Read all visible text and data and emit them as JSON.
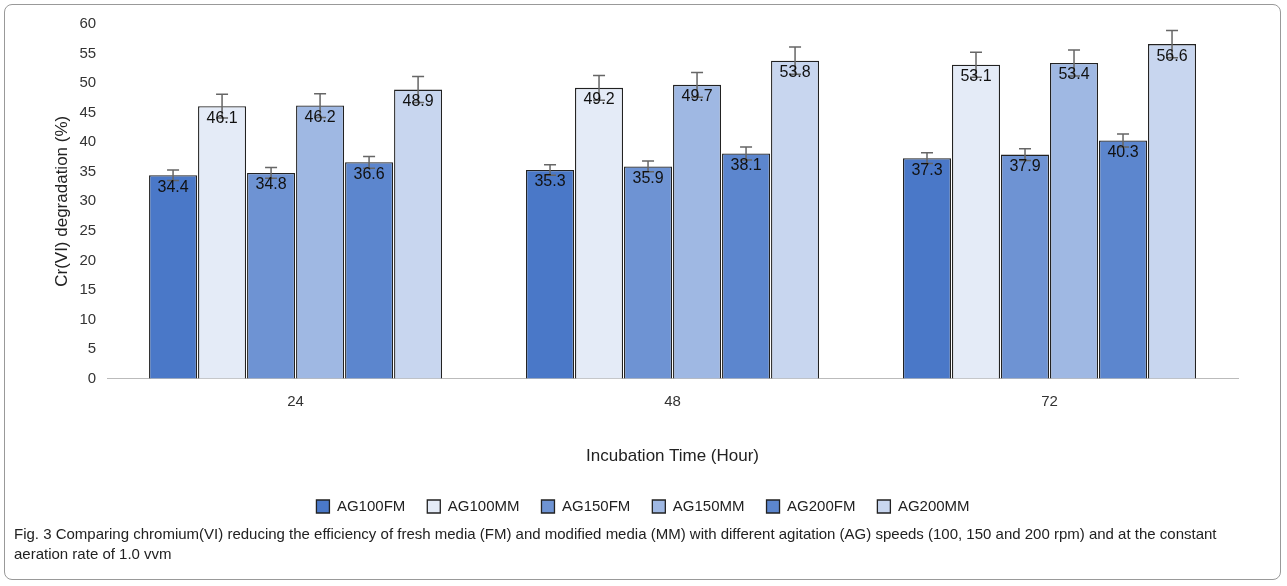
{
  "chart_data": {
    "type": "bar",
    "categories": [
      "24",
      "48",
      "72"
    ],
    "series": [
      {
        "name": "AG100FM",
        "color": "#4a78c8",
        "values": [
          34.4,
          35.3,
          37.3
        ],
        "errors": [
          0.9,
          0.9,
          0.9
        ]
      },
      {
        "name": "AG100MM",
        "color": "#e4ebf7",
        "values": [
          46.1,
          49.2,
          53.1
        ],
        "errors": [
          2,
          2.1,
          2.1
        ]
      },
      {
        "name": "AG150FM",
        "color": "#6e93d3",
        "values": [
          34.8,
          35.9,
          37.9
        ],
        "errors": [
          0.9,
          0.9,
          1
        ]
      },
      {
        "name": "AG150MM",
        "color": "#9fb8e3",
        "values": [
          46.2,
          49.7,
          53.4
        ],
        "errors": [
          2,
          2.1,
          2.2
        ]
      },
      {
        "name": "AG200FM",
        "color": "#5c86ce",
        "values": [
          36.6,
          38.1,
          40.3
        ],
        "errors": [
          1,
          1.1,
          1.1
        ]
      },
      {
        "name": "AG200MM",
        "color": "#c8d6ef",
        "values": [
          48.9,
          53.8,
          56.6
        ],
        "errors": [
          2.2,
          2.3,
          2.3
        ]
      }
    ],
    "ylim": [
      0,
      60
    ],
    "yticks": [
      0,
      5,
      10,
      15,
      20,
      25,
      30,
      35,
      40,
      45,
      50,
      55,
      60
    ],
    "xlabel": "Incubation Time (Hour)",
    "ylabel": "Cr(VI) degradation (%)",
    "data_labels": true,
    "legend": "bottom",
    "grid": false,
    "annotations": [
      "Fig. 3  Comparing chromium(VI) reducing the efficiency of fresh media (FM) and modified media (MM) with different agitation (AG) speeds (100, 150 and 200 rpm) and at the constant aeration rate of 1.0 vvm"
    ]
  }
}
